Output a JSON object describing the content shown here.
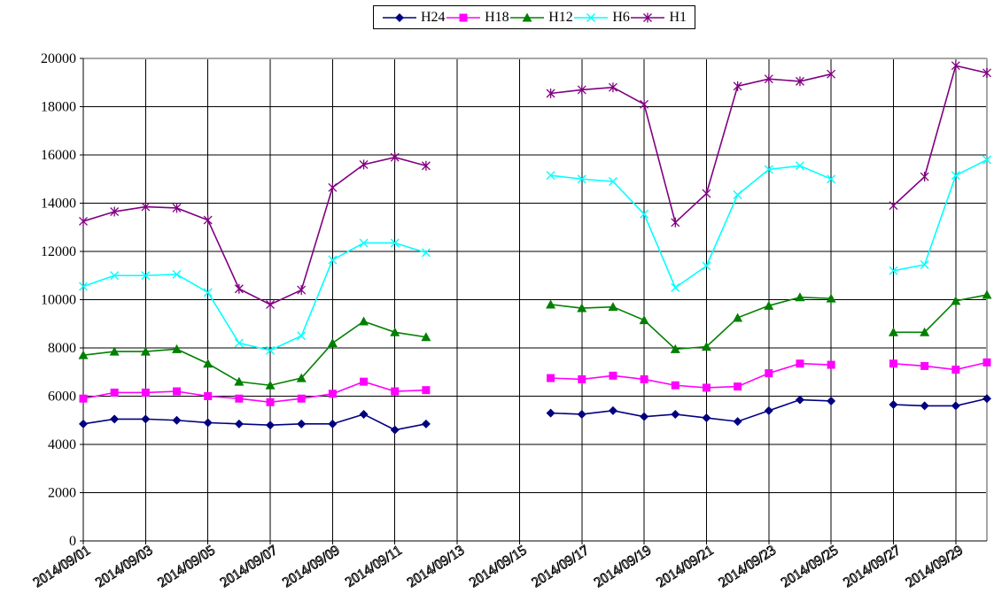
{
  "chart": {
    "legend_position": "top-center",
    "background": "#ffffff",
    "grid_color": "#000000",
    "border_color": "#a6a6a6",
    "axis_color": "#000000"
  },
  "chart_data": {
    "type": "line",
    "title": "",
    "xlabel": "",
    "ylabel": "",
    "ylim": [
      0,
      20000
    ],
    "y_tick_step": 2000,
    "y_tick_labels": [
      "0",
      "2000",
      "4000",
      "6000",
      "8000",
      "10000",
      "12000",
      "14000",
      "16000",
      "18000",
      "20000"
    ],
    "x_tick_labels": [
      "2014/09/01",
      "2014/09/03",
      "2014/09/05",
      "2014/09/07",
      "2014/09/09",
      "2014/09/11",
      "2014/09/13",
      "2014/09/15",
      "2014/09/17",
      "2014/09/19",
      "2014/09/21",
      "2014/09/23",
      "2014/09/25",
      "2014/09/27",
      "2014/09/29"
    ],
    "x_range_days": [
      1,
      30
    ],
    "missing_days": [
      13,
      14,
      15,
      26
    ],
    "grid": "both",
    "legend_entries": [
      "H24",
      "H18",
      "H12",
      "H6",
      "H1"
    ],
    "series": [
      {
        "name": "H24",
        "color": "#000080",
        "marker": "diamond",
        "points": [
          [
            1,
            4850
          ],
          [
            2,
            5050
          ],
          [
            3,
            5050
          ],
          [
            4,
            5000
          ],
          [
            5,
            4900
          ],
          [
            6,
            4850
          ],
          [
            7,
            4800
          ],
          [
            8,
            4850
          ],
          [
            9,
            4850
          ],
          [
            10,
            5250
          ],
          [
            11,
            4600
          ],
          [
            12,
            4850
          ],
          [
            16,
            5300
          ],
          [
            17,
            5250
          ],
          [
            18,
            5400
          ],
          [
            19,
            5150
          ],
          [
            20,
            5250
          ],
          [
            21,
            5100
          ],
          [
            22,
            4950
          ],
          [
            23,
            5400
          ],
          [
            24,
            5850
          ],
          [
            25,
            5800
          ],
          [
            27,
            5650
          ],
          [
            28,
            5600
          ],
          [
            29,
            5600
          ],
          [
            30,
            5900
          ]
        ]
      },
      {
        "name": "H18",
        "color": "#FF00FF",
        "marker": "square",
        "points": [
          [
            1,
            5900
          ],
          [
            2,
            6150
          ],
          [
            3,
            6150
          ],
          [
            4,
            6200
          ],
          [
            5,
            6000
          ],
          [
            6,
            5900
          ],
          [
            7,
            5750
          ],
          [
            8,
            5900
          ],
          [
            9,
            6100
          ],
          [
            10,
            6600
          ],
          [
            11,
            6200
          ],
          [
            12,
            6250
          ],
          [
            16,
            6750
          ],
          [
            17,
            6700
          ],
          [
            18,
            6850
          ],
          [
            19,
            6700
          ],
          [
            20,
            6450
          ],
          [
            21,
            6350
          ],
          [
            22,
            6400
          ],
          [
            23,
            6950
          ],
          [
            24,
            7350
          ],
          [
            25,
            7300
          ],
          [
            27,
            7350
          ],
          [
            28,
            7250
          ],
          [
            29,
            7100
          ],
          [
            30,
            7400
          ]
        ]
      },
      {
        "name": "H12",
        "color": "#008000",
        "marker": "triangle",
        "points": [
          [
            1,
            7700
          ],
          [
            2,
            7850
          ],
          [
            3,
            7850
          ],
          [
            4,
            7950
          ],
          [
            5,
            7350
          ],
          [
            6,
            6600
          ],
          [
            7,
            6450
          ],
          [
            8,
            6750
          ],
          [
            9,
            8200
          ],
          [
            10,
            9100
          ],
          [
            11,
            8650
          ],
          [
            12,
            8450
          ],
          [
            16,
            9800
          ],
          [
            17,
            9650
          ],
          [
            18,
            9700
          ],
          [
            19,
            9150
          ],
          [
            20,
            7950
          ],
          [
            21,
            8050
          ],
          [
            22,
            9250
          ],
          [
            23,
            9750
          ],
          [
            24,
            10100
          ],
          [
            25,
            10050
          ],
          [
            27,
            8650
          ],
          [
            28,
            8650
          ],
          [
            29,
            9950
          ],
          [
            30,
            10200
          ]
        ]
      },
      {
        "name": "H6",
        "color": "#00FFFF",
        "marker": "x",
        "points": [
          [
            1,
            10550
          ],
          [
            2,
            11000
          ],
          [
            3,
            11000
          ],
          [
            4,
            11050
          ],
          [
            5,
            10300
          ],
          [
            6,
            8200
          ],
          [
            7,
            7900
          ],
          [
            8,
            8500
          ],
          [
            9,
            11650
          ],
          [
            10,
            12350
          ],
          [
            11,
            12350
          ],
          [
            12,
            11950
          ],
          [
            16,
            15150
          ],
          [
            17,
            15000
          ],
          [
            18,
            14900
          ],
          [
            19,
            13550
          ],
          [
            20,
            10500
          ],
          [
            21,
            11400
          ],
          [
            22,
            14350
          ],
          [
            23,
            15400
          ],
          [
            24,
            15550
          ],
          [
            25,
            15000
          ],
          [
            27,
            11200
          ],
          [
            28,
            11450
          ],
          [
            29,
            15150
          ],
          [
            30,
            15800
          ]
        ]
      },
      {
        "name": "H1",
        "color": "#800080",
        "marker": "asterisk",
        "points": [
          [
            1,
            13250
          ],
          [
            2,
            13650
          ],
          [
            3,
            13850
          ],
          [
            4,
            13800
          ],
          [
            5,
            13300
          ],
          [
            6,
            10450
          ],
          [
            7,
            9800
          ],
          [
            8,
            10400
          ],
          [
            9,
            14650
          ],
          [
            10,
            15600
          ],
          [
            11,
            15900
          ],
          [
            12,
            15550
          ],
          [
            16,
            18550
          ],
          [
            17,
            18700
          ],
          [
            18,
            18800
          ],
          [
            19,
            18100
          ],
          [
            20,
            13200
          ],
          [
            21,
            14400
          ],
          [
            22,
            18850
          ],
          [
            23,
            19150
          ],
          [
            24,
            19050
          ],
          [
            25,
            19350
          ],
          [
            27,
            13900
          ],
          [
            28,
            15100
          ],
          [
            29,
            19700
          ],
          [
            30,
            19400
          ]
        ]
      }
    ]
  }
}
